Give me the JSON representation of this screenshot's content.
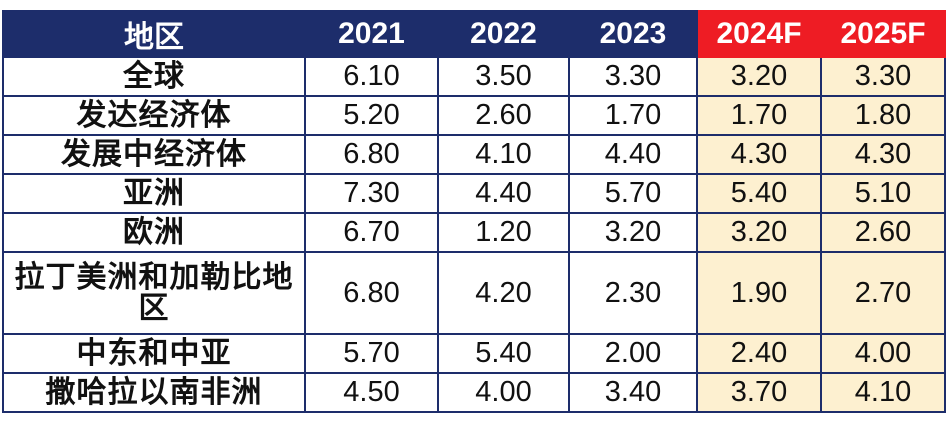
{
  "chart_data": {
    "type": "table",
    "columns": [
      "地区",
      "2021",
      "2022",
      "2023",
      "2024F",
      "2025F"
    ],
    "rows": [
      {
        "region": "全球",
        "values": [
          "6.10",
          "3.50",
          "3.30",
          "3.20",
          "3.30"
        ]
      },
      {
        "region": "发达经济体",
        "values": [
          "5.20",
          "2.60",
          "1.70",
          "1.70",
          "1.80"
        ]
      },
      {
        "region": "发展中经济体",
        "values": [
          "6.80",
          "4.10",
          "4.40",
          "4.30",
          "4.30"
        ]
      },
      {
        "region": "亚洲",
        "values": [
          "7.30",
          "4.40",
          "5.70",
          "5.40",
          "5.10"
        ]
      },
      {
        "region": "欧洲",
        "values": [
          "6.70",
          "1.20",
          "3.20",
          "3.20",
          "2.60"
        ]
      },
      {
        "region": "拉丁美洲和加勒比地区",
        "values": [
          "6.80",
          "4.20",
          "2.30",
          "1.90",
          "2.70"
        ]
      },
      {
        "region": "中东和中亚",
        "values": [
          "5.70",
          "5.40",
          "2.00",
          "2.40",
          "4.00"
        ]
      },
      {
        "region": "撒哈拉以南非洲",
        "values": [
          "4.50",
          "4.00",
          "3.40",
          "3.70",
          "4.10"
        ]
      }
    ]
  },
  "colors": {
    "header_bg": "#1d2d6b",
    "forecast_header_bg": "#ee1c24",
    "forecast_cell_bg": "#fdf0d0",
    "border": "#1d2d6b"
  }
}
